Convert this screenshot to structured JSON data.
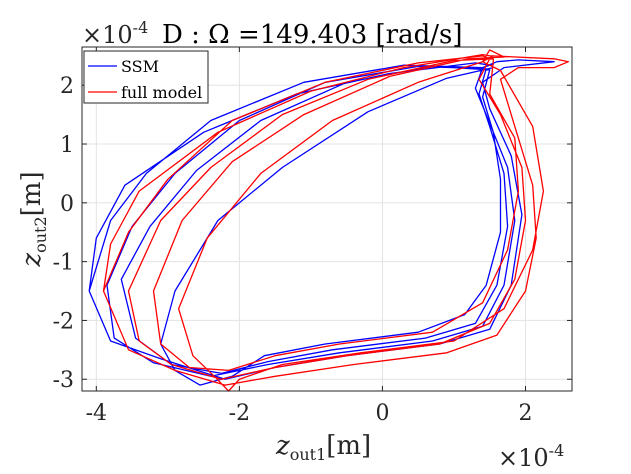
{
  "chart_data": {
    "type": "line",
    "title": "D : Ω =149.403 [rad/s]",
    "xlabel": {
      "base": "z",
      "sub": "out1",
      "unit": "[m]"
    },
    "ylabel": {
      "base": "z",
      "sub": "out2",
      "unit": "[m]"
    },
    "x_multiplier": "×10",
    "x_multiplier_exp": "-4",
    "y_multiplier": "×10",
    "y_multiplier_exp": "-4",
    "xlim": [
      -4.2,
      2.65
    ],
    "ylim": [
      -3.2,
      2.65
    ],
    "xticks": [
      -4,
      -2,
      0,
      2
    ],
    "xtick_labels": [
      "-4",
      "-2",
      "0",
      "2"
    ],
    "yticks": [
      -3,
      -2,
      -1,
      0,
      1,
      2
    ],
    "ytick_labels": [
      "-3",
      "-2",
      "-1",
      "0",
      "1",
      "2"
    ],
    "grid": true,
    "legend_position": "top-left",
    "series": [
      {
        "name": "SSM",
        "color": "#0000ff",
        "x": [
          -4.1,
          -4.0,
          -3.6,
          -2.5,
          -1.2,
          0.1,
          1.3,
          1.5,
          1.55,
          1.4,
          1.6,
          1.9,
          2.4,
          1.7,
          1.4,
          1.5,
          1.8,
          1.95,
          1.8,
          1.5,
          0.8,
          -0.5,
          -1.5,
          -2.2,
          -3.1,
          -3.8,
          -4.1,
          -3.8,
          -3.3,
          -2.4,
          -1.1,
          0.3,
          1.4,
          1.3,
          1.45,
          1.75,
          1.85,
          1.7,
          1.4,
          0.7,
          -0.6,
          -1.6,
          -2.4,
          -3.2,
          -3.75,
          -3.85,
          -3.5,
          -2.9,
          -2.0,
          -0.8,
          0.5,
          1.45,
          1.35,
          1.5,
          1.7,
          1.75,
          1.6,
          1.3,
          0.6,
          -0.7,
          -1.6,
          -2.25,
          -2.95,
          -3.45,
          -3.65,
          -3.25,
          -2.6,
          -1.7,
          -0.5,
          0.7,
          1.5,
          1.4,
          1.55,
          1.65,
          1.65,
          1.45,
          1.15,
          0.5,
          -0.8,
          -1.65,
          -2.1,
          -2.55,
          -2.9,
          -3.1,
          -2.9,
          -2.3,
          -1.4,
          -0.2,
          0.9,
          1.55
        ],
        "y": [
          -1.5,
          -0.6,
          0.3,
          1.2,
          1.85,
          2.2,
          2.38,
          2.34,
          2.36,
          2.3,
          2.4,
          2.43,
          2.4,
          2.3,
          2.05,
          1.6,
          0.8,
          -0.2,
          -1.4,
          -2.15,
          -2.4,
          -2.6,
          -2.8,
          -3.0,
          -2.65,
          -2.35,
          -1.5,
          -0.3,
          0.5,
          1.4,
          2.05,
          2.34,
          2.3,
          1.95,
          1.5,
          0.6,
          -0.3,
          -1.4,
          -2.1,
          -2.35,
          -2.55,
          -2.75,
          -2.95,
          -2.72,
          -2.3,
          -1.4,
          -0.4,
          0.5,
          1.4,
          2.05,
          2.32,
          2.28,
          1.85,
          1.3,
          0.5,
          -0.4,
          -1.4,
          -2.05,
          -2.3,
          -2.5,
          -2.7,
          -2.9,
          -2.75,
          -2.3,
          -1.3,
          -0.4,
          0.55,
          1.4,
          2.05,
          2.32,
          2.26,
          1.8,
          1.2,
          0.4,
          -0.5,
          -1.4,
          -1.9,
          -2.2,
          -2.4,
          -2.6,
          -2.95,
          -3.1,
          -2.85,
          -2.4,
          -1.5,
          -0.3,
          0.6,
          1.55,
          2.12,
          2.3
        ]
      },
      {
        "name": "full model",
        "color": "#ff0000",
        "x": [
          -3.9,
          -3.8,
          -3.4,
          -2.3,
          -1.0,
          0.3,
          1.4,
          1.5,
          1.5,
          2.4,
          2.6,
          2.4,
          1.9,
          1.65,
          1.85,
          2.1,
          2.15,
          2.0,
          1.6,
          0.9,
          -0.4,
          -1.5,
          -2.2,
          -2.9,
          -3.55,
          -3.9,
          -3.55,
          -3.0,
          -2.1,
          -0.8,
          0.5,
          1.4,
          1.5,
          1.35,
          1.65,
          1.95,
          2.0,
          1.85,
          1.5,
          0.8,
          -0.5,
          -1.5,
          -2.25,
          -2.95,
          -3.4,
          -3.55,
          -3.1,
          -2.4,
          -1.4,
          -0.2,
          1.0,
          1.55,
          1.55,
          1.5,
          1.85,
          1.9,
          1.75,
          1.4,
          0.7,
          -0.6,
          -1.5,
          -2.15,
          -2.7,
          -3.1,
          -3.2,
          -2.8,
          -2.1,
          -1.1,
          0.1,
          1.2,
          1.7,
          1.5,
          1.4,
          1.65,
          2.1,
          2.25,
          2.1,
          1.7,
          1.0,
          -0.3,
          -1.4,
          -2.0,
          -2.15,
          -2.35,
          -2.65,
          -2.85,
          -2.45,
          -1.7,
          -0.7,
          0.5,
          1.4,
          1.55
        ],
        "y": [
          -1.5,
          -0.7,
          0.2,
          1.2,
          1.9,
          2.3,
          2.52,
          2.5,
          2.5,
          2.45,
          2.4,
          2.3,
          2.3,
          2.1,
          1.3,
          0.3,
          -0.6,
          -1.5,
          -2.25,
          -2.55,
          -2.75,
          -2.95,
          -3.1,
          -2.85,
          -2.5,
          -1.5,
          -0.5,
          0.4,
          1.4,
          2.05,
          2.38,
          2.5,
          2.45,
          2.1,
          1.5,
          0.6,
          -0.3,
          -1.3,
          -2.05,
          -2.4,
          -2.6,
          -2.8,
          -3.0,
          -2.75,
          -2.35,
          -1.5,
          -0.3,
          0.6,
          1.5,
          2.1,
          2.42,
          2.45,
          2.4,
          1.85,
          1.1,
          0.2,
          -0.8,
          -1.7,
          -2.2,
          -2.4,
          -2.6,
          -2.85,
          -2.8,
          -2.4,
          -1.5,
          -0.3,
          0.7,
          1.5,
          2.15,
          2.45,
          2.48,
          2.6,
          2.4,
          2.25,
          1.3,
          0.2,
          -0.8,
          -1.8,
          -2.35,
          -2.55,
          -2.75,
          -3.0,
          -3.2,
          -2.95,
          -2.6,
          -1.8,
          -0.6,
          0.5,
          1.4,
          2.05,
          2.4,
          2.5
        ]
      }
    ]
  }
}
